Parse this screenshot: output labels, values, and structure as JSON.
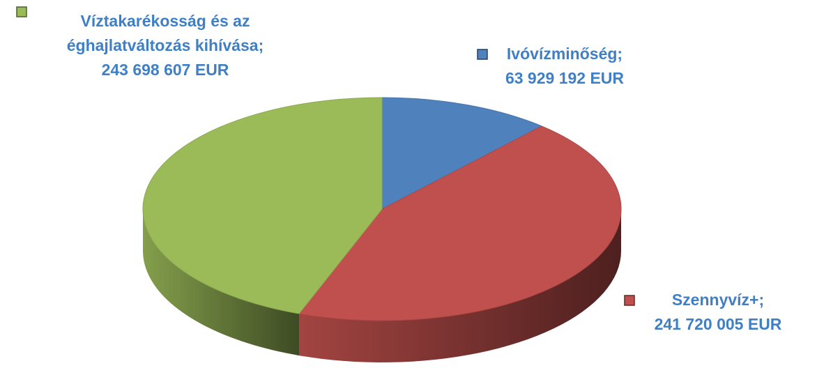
{
  "chart_data": {
    "type": "pie",
    "categories": [
      "Ivóvízminőség;",
      "Szennyvíz+;",
      "Víztakarékosság és az éghajlatváltozás kihívása;"
    ],
    "values": [
      63929192,
      241720005,
      243698607
    ],
    "value_labels": [
      "63 929 192 EUR",
      "241 720 005 EUR",
      "243 698 607 EUR"
    ],
    "colors": [
      "#4f81bd",
      "#c0504d",
      "#9bbb59"
    ]
  }
}
